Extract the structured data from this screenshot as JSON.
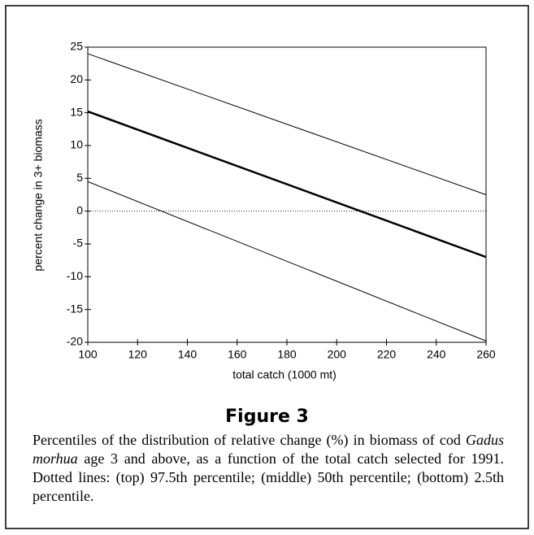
{
  "chart_data": {
    "type": "line",
    "x_label": "total catch (1000 mt)",
    "y_label": "percent change in 3+ biomass",
    "x": [
      100,
      260
    ],
    "series": [
      {
        "color": "#000000",
        "line_width": 1,
        "values": [
          24,
          2.5
        ]
      },
      {
        "color": "#000000",
        "line_width": 2.5,
        "values": [
          15.2,
          -7
        ]
      },
      {
        "color": "#000000",
        "line_width": 1,
        "values": [
          4.5,
          -19.8
        ]
      }
    ],
    "reference_line": {
      "y": 0,
      "style": "dotted"
    },
    "xlim": [
      100,
      260
    ],
    "xticks": [
      100,
      120,
      140,
      160,
      180,
      200,
      220,
      240,
      260
    ],
    "ylim": [
      -20,
      25
    ],
    "yticks": [
      -20,
      -15,
      -10,
      -5,
      0,
      5,
      10,
      15,
      20,
      25
    ],
    "grid": false
  },
  "figure": {
    "label": "Figure 3",
    "caption": [
      "Percentiles of the distribution of relative change (%) in biomass of cod ",
      "Gadus morhua",
      " age 3 and above, as a function of the total catch selected for 1991. Dotted lines: (top) 97.5th percentile; (middle) 50th percentile; (bottom) 2.5th percentile."
    ]
  }
}
